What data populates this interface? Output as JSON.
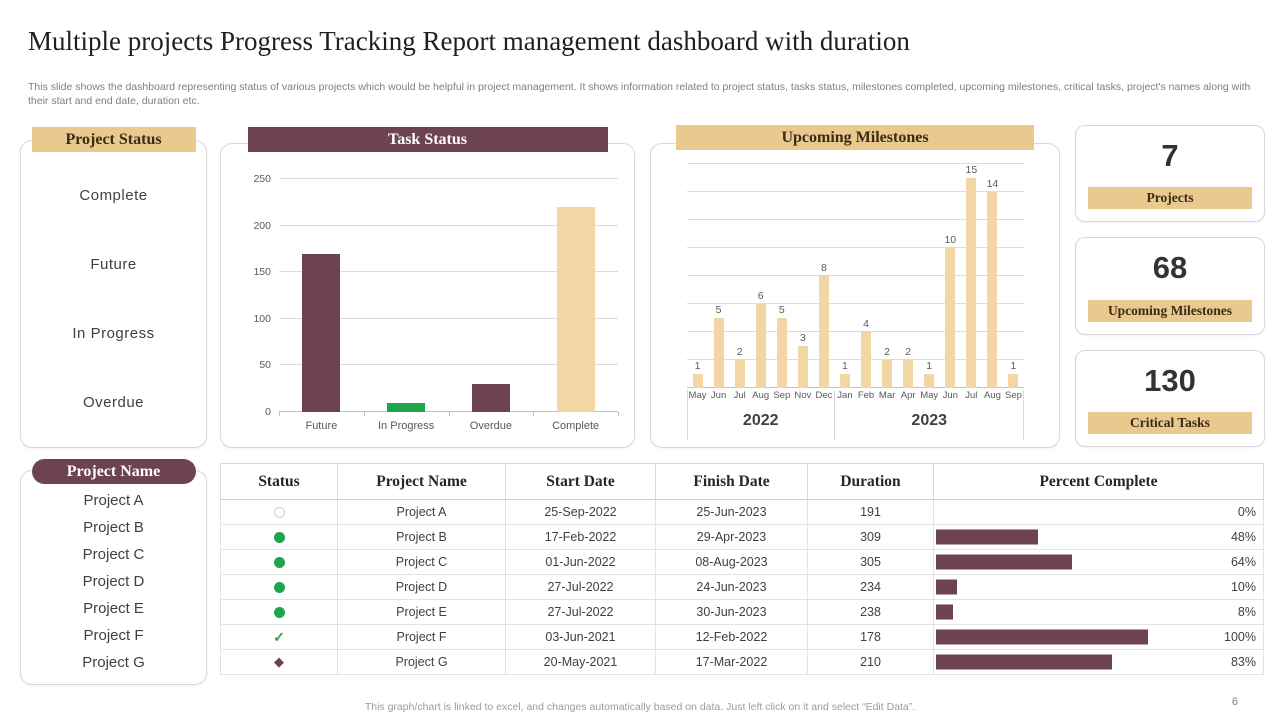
{
  "page": {
    "title": "Multiple projects Progress Tracking Report management dashboard with duration",
    "subtitle": "This slide shows the dashboard representing status of various projects which would be helpful in project management. It shows information related to project status, tasks status, milestones completed, upcoming milestones, critical tasks, project's names along with their start and end date, duration etc.",
    "footer": "This graph/chart is linked to excel,  and changes automatically based on data. Just left click on it and select “Edit Data”.",
    "page_number": "6"
  },
  "colors": {
    "maroon": "#6D4352",
    "tan_header": "#EAC88E",
    "tan_bar": "#F2D7A4",
    "green": "#1EA44C"
  },
  "project_status": {
    "header": "Project Status",
    "items": [
      "Complete",
      "Future",
      "In  Progress",
      "Overdue"
    ]
  },
  "project_name": {
    "header": "Project Name",
    "items": [
      "Project A",
      "Project B",
      "Project C",
      "Project D",
      "Project E",
      "Project F",
      "Project G"
    ]
  },
  "kpi_cards": [
    {
      "value": "7",
      "label": "Projects"
    },
    {
      "value": "68",
      "label": "Upcoming Milestones"
    },
    {
      "value": "130",
      "label": "Critical Tasks"
    }
  ],
  "chart_data": [
    {
      "type": "bar",
      "title": "Task Status",
      "categories": [
        "Future",
        "In Progress",
        "Overdue",
        "Complete"
      ],
      "values": [
        170,
        10,
        30,
        220
      ],
      "bar_color_keys": [
        "maroon",
        "green",
        "maroon",
        "tan_bar"
      ],
      "ylim": [
        0,
        250
      ],
      "yticks": [
        0,
        50,
        100,
        150,
        200,
        250
      ],
      "grid": true,
      "legend": "none"
    },
    {
      "type": "bar",
      "title": "Upcoming Milestones",
      "groups": [
        {
          "year": "2022",
          "categories": [
            "May",
            "Jun",
            "Jul",
            "Aug",
            "Sep",
            "Nov",
            "Dec"
          ],
          "values": [
            1,
            5,
            2,
            6,
            5,
            3,
            8
          ]
        },
        {
          "year": "2023",
          "categories": [
            "Jan",
            "Feb",
            "Mar",
            "Apr",
            "May",
            "Jun",
            "Jul",
            "Aug",
            "Sep"
          ],
          "values": [
            1,
            4,
            2,
            2,
            1,
            10,
            15,
            14,
            1
          ]
        }
      ],
      "ylim": [
        0,
        16
      ],
      "gridline_step": 2,
      "grid": true,
      "data_labels": true,
      "bar_color_key": "tan_bar"
    }
  ],
  "table": {
    "headers": [
      "Status",
      "Project Name",
      "Start Date",
      "Finish Date",
      "Duration",
      "Percent Complete"
    ],
    "rows": [
      {
        "status_icon": "circle-outline",
        "name": "Project A",
        "start": "25-Sep-2022",
        "finish": "25-Jun-2023",
        "duration": "191",
        "percent": 0,
        "percent_label": "0%"
      },
      {
        "status_icon": "dot-green",
        "name": "Project B",
        "start": "17-Feb-2022",
        "finish": "29-Apr-2023",
        "duration": "309",
        "percent": 48,
        "percent_label": "48%"
      },
      {
        "status_icon": "dot-green",
        "name": "Project C",
        "start": "01-Jun-2022",
        "finish": "08-Aug-2023",
        "duration": "305",
        "percent": 64,
        "percent_label": "64%"
      },
      {
        "status_icon": "dot-green",
        "name": "Project D",
        "start": "27-Jul-2022",
        "finish": "24-Jun-2023",
        "duration": "234",
        "percent": 10,
        "percent_label": "10%"
      },
      {
        "status_icon": "dot-green",
        "name": "Project E",
        "start": "27-Jul-2022",
        "finish": "30-Jun-2023",
        "duration": "238",
        "percent": 8,
        "percent_label": "8%"
      },
      {
        "status_icon": "check-green",
        "name": "Project F",
        "start": "03-Jun-2021",
        "finish": "12-Feb-2022",
        "duration": "178",
        "percent": 100,
        "percent_label": "100%"
      },
      {
        "status_icon": "diamond-maroon",
        "name": "Project G",
        "start": "20-May-2021",
        "finish": "17-Mar-2022",
        "duration": "210",
        "percent": 83,
        "percent_label": "83%"
      }
    ]
  }
}
